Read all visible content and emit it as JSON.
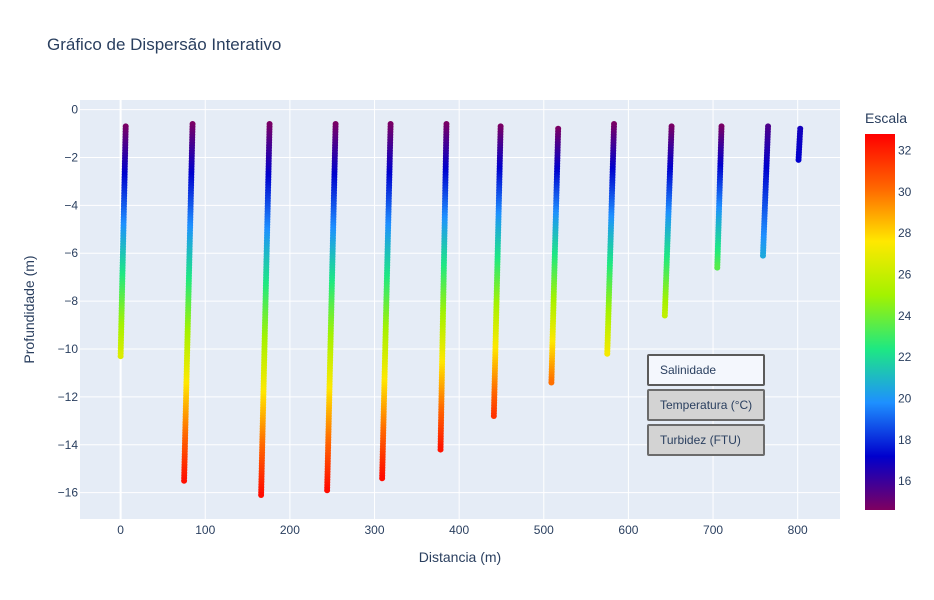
{
  "chart_data": {
    "type": "scatter",
    "title": "Gráfico de Dispersão Interativo",
    "xlabel": "Distancia (m)",
    "ylabel": "Profundidade (m)",
    "xlim": [
      -48,
      850
    ],
    "ylim": [
      -17.1,
      0.4
    ],
    "x_ticks": [
      0,
      100,
      200,
      300,
      400,
      500,
      600,
      700,
      800
    ],
    "y_ticks": [
      0,
      -2,
      -4,
      -6,
      -8,
      -10,
      -12,
      -14,
      -16
    ],
    "grid": true,
    "colorbar": {
      "title": "Escala",
      "range": [
        14.6,
        32.8
      ],
      "ticks": [
        16,
        18,
        20,
        22,
        24,
        26,
        28,
        30,
        32
      ],
      "colorscale": [
        "#7f0060",
        "#0000cd",
        "#1e90ff",
        "#1ee882",
        "#a3f200",
        "#ffe800",
        "#ff6600",
        "#ff0000"
      ]
    },
    "profiles": [
      {
        "x_top": 6,
        "x_bottom": 0,
        "depth_top": -0.7,
        "depth_bottom": -10.3,
        "value_top": 14.7,
        "value_bottom": 26.6
      },
      {
        "x_top": 85,
        "x_bottom": 75,
        "depth_top": -0.6,
        "depth_bottom": -15.5,
        "value_top": 14.7,
        "value_bottom": 32.4
      },
      {
        "x_top": 176,
        "x_bottom": 166,
        "depth_top": -0.6,
        "depth_bottom": -16.1,
        "value_top": 14.7,
        "value_bottom": 32.5
      },
      {
        "x_top": 254,
        "x_bottom": 244,
        "depth_top": -0.6,
        "depth_bottom": -15.9,
        "value_top": 14.7,
        "value_bottom": 32.5
      },
      {
        "x_top": 319,
        "x_bottom": 309,
        "depth_top": -0.6,
        "depth_bottom": -15.4,
        "value_top": 14.7,
        "value_bottom": 32.5
      },
      {
        "x_top": 385,
        "x_bottom": 378,
        "depth_top": -0.6,
        "depth_bottom": -14.2,
        "value_top": 14.7,
        "value_bottom": 32.3
      },
      {
        "x_top": 449,
        "x_bottom": 441,
        "depth_top": -0.7,
        "depth_bottom": -12.8,
        "value_top": 14.7,
        "value_bottom": 31.5
      },
      {
        "x_top": 517,
        "x_bottom": 509,
        "depth_top": -0.8,
        "depth_bottom": -11.4,
        "value_top": 14.7,
        "value_bottom": 30.0
      },
      {
        "x_top": 583,
        "x_bottom": 575,
        "depth_top": -0.6,
        "depth_bottom": -10.2,
        "value_top": 14.7,
        "value_bottom": 27.3
      },
      {
        "x_top": 651,
        "x_bottom": 643,
        "depth_top": -0.7,
        "depth_bottom": -8.6,
        "value_top": 14.7,
        "value_bottom": 25.8
      },
      {
        "x_top": 710,
        "x_bottom": 705,
        "depth_top": -0.7,
        "depth_bottom": -6.6,
        "value_top": 14.7,
        "value_bottom": 23.5
      },
      {
        "x_top": 765,
        "x_bottom": 759,
        "depth_top": -0.7,
        "depth_bottom": -6.1,
        "value_top": 15.6,
        "value_bottom": 20.5
      },
      {
        "x_top": 803,
        "x_bottom": 801,
        "depth_top": -0.8,
        "depth_bottom": -2.1,
        "value_top": 16.8,
        "value_bottom": 17.2
      }
    ]
  },
  "buttons": {
    "salinity": "Salinidade",
    "temperature": "Temperatura (°C)",
    "turbidity": "Turbidez (FTU)"
  }
}
